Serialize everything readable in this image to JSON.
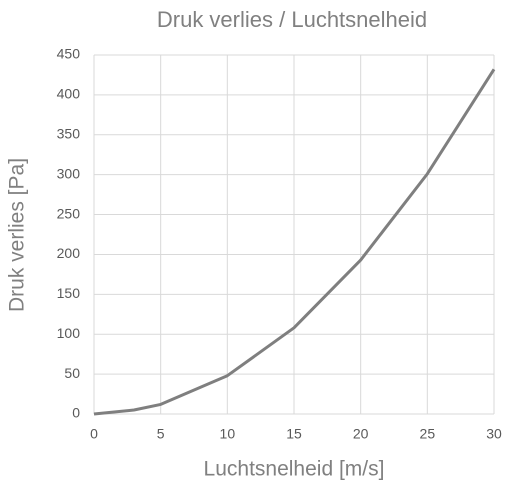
{
  "chart_data": {
    "type": "line",
    "title": "Druk verlies / Luchtsnelheid",
    "x_label": "Luchtsnelheid [m/s]",
    "y_label": "Druk verlies [Pa]",
    "x": [
      0,
      3,
      5,
      10,
      15,
      20,
      25,
      30
    ],
    "series": [
      {
        "name": "Druk verlies",
        "color": "#7f7f7f",
        "values": [
          0,
          5,
          12,
          48,
          108,
          193,
          301,
          432
        ]
      }
    ],
    "xlim": [
      0,
      30
    ],
    "xticks": [
      0,
      5,
      10,
      15,
      20,
      25,
      30
    ],
    "ylim": [
      0,
      450
    ],
    "yticks": [
      0,
      50,
      100,
      150,
      200,
      250,
      300,
      350,
      400,
      450
    ],
    "grid": true
  }
}
